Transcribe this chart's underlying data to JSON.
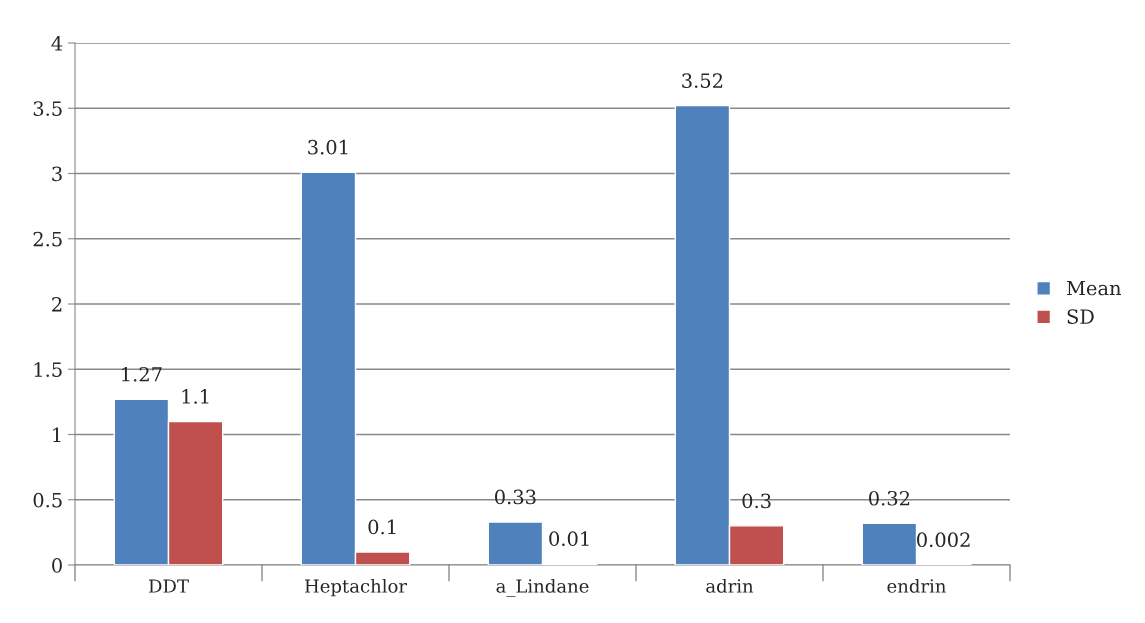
{
  "chart_data": {
    "type": "bar",
    "categories": [
      "DDT",
      "Heptachlor",
      "a_Lindane",
      "adrin",
      "endrin"
    ],
    "series": [
      {
        "name": "Mean",
        "color": "#4f81bd",
        "values": [
          1.27,
          3.01,
          0.33,
          3.52,
          0.32
        ]
      },
      {
        "name": "SD",
        "color": "#c0504d",
        "values": [
          1.1,
          0.1,
          0.01,
          0.3,
          0.002
        ]
      }
    ],
    "ylim": [
      0,
      4
    ],
    "yticks": [
      0,
      0.5,
      1,
      1.5,
      2,
      2.5,
      3,
      3.5,
      4
    ],
    "grid": "y",
    "legend": "right",
    "data_labels": true
  }
}
